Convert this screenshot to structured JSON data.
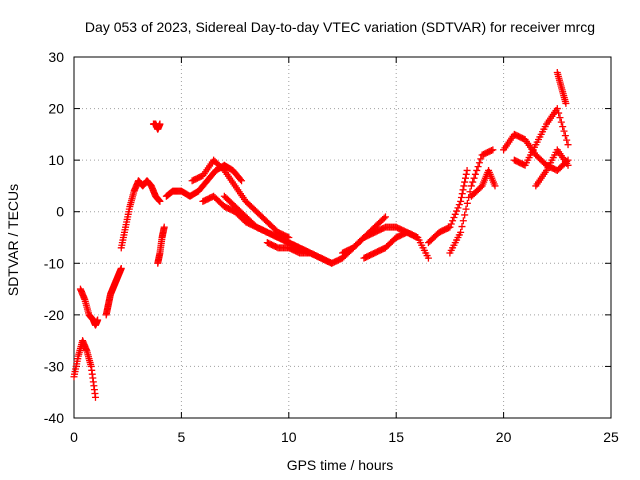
{
  "chart_data": {
    "type": "scatter",
    "title": "Day 053 of 2023, Sidereal Day-to-day VTEC variation (SDTVAR) for receiver mrcg",
    "xlabel": "GPS time / hours",
    "ylabel": "SDTVAR / TECUs",
    "xlim": [
      0,
      25
    ],
    "ylim": [
      -40,
      30
    ],
    "xticks": [
      0,
      5,
      10,
      15,
      20,
      25
    ],
    "yticks": [
      -40,
      -30,
      -20,
      -10,
      0,
      10,
      20,
      30
    ],
    "xtick_labels": [
      "0",
      "5",
      "10",
      "15",
      "20",
      "25"
    ],
    "ytick_labels": [
      "-40",
      "-30",
      "-20",
      "-10",
      "0",
      "10",
      "20",
      "30"
    ],
    "grid": true,
    "grid_style": "dotted",
    "marker": "plus",
    "color": "#ff0000",
    "series": [
      {
        "x": [
          0.0,
          0.2,
          0.4,
          0.6,
          0.8,
          1.0
        ],
        "y": [
          -32,
          -28,
          -25,
          -27,
          -30,
          -36
        ]
      },
      {
        "x": [
          0.3,
          0.5,
          0.7,
          0.9,
          1.0,
          1.1
        ],
        "y": [
          -15,
          -17,
          -20,
          -21,
          -22,
          -21
        ]
      },
      {
        "x": [
          1.5,
          1.6,
          1.7,
          1.8,
          1.9,
          2.0,
          2.1,
          2.2
        ],
        "y": [
          -20,
          -18,
          -16,
          -15,
          -14,
          -13,
          -12,
          -11
        ]
      },
      {
        "x": [
          2.2,
          2.4,
          2.6,
          2.8,
          3.0,
          3.2,
          3.4,
          3.6,
          3.8,
          4.0
        ],
        "y": [
          -7,
          -3,
          1,
          4,
          6,
          5,
          6,
          5,
          3,
          2
        ]
      },
      {
        "x": [
          3.7,
          3.8,
          3.9,
          4.0
        ],
        "y": [
          17,
          17,
          16,
          17
        ]
      },
      {
        "x": [
          3.9,
          4.0,
          4.1,
          4.2
        ],
        "y": [
          -10,
          -8,
          -5,
          -3
        ]
      },
      {
        "x": [
          4.3,
          4.6,
          5.0,
          5.4,
          5.8,
          6.2,
          6.6,
          7.0,
          7.4,
          7.8
        ],
        "y": [
          3,
          4,
          4,
          3,
          4,
          6,
          8,
          9,
          8,
          6
        ]
      },
      {
        "x": [
          5.5,
          6.0,
          6.5,
          7.0,
          7.5,
          8.0,
          8.5,
          9.0,
          9.5,
          10.0
        ],
        "y": [
          6,
          7,
          10,
          8,
          5,
          2,
          0,
          -2,
          -4,
          -5
        ]
      },
      {
        "x": [
          6.0,
          6.5,
          7.0,
          7.5,
          8.0,
          8.5,
          9.0,
          9.5,
          10.0,
          10.5,
          11.0
        ],
        "y": [
          2,
          3,
          1,
          0,
          -2,
          -3,
          -4,
          -5,
          -6,
          -7,
          -8
        ]
      },
      {
        "x": [
          7.0,
          7.5,
          8.0,
          8.5,
          9.0,
          9.5,
          10.0,
          10.5,
          11.0,
          11.5,
          12.0
        ],
        "y": [
          3,
          1,
          -1,
          -3,
          -4,
          -5,
          -6,
          -7,
          -8,
          -9,
          -10
        ]
      },
      {
        "x": [
          9.0,
          9.5,
          10.0,
          10.5,
          11.0,
          11.5,
          12.0,
          12.5,
          13.0,
          13.5,
          14.0,
          14.5
        ],
        "y": [
          -6,
          -7,
          -7,
          -8,
          -8,
          -9,
          -10,
          -9,
          -7,
          -5,
          -3,
          -1
        ]
      },
      {
        "x": [
          12.5,
          13.0,
          13.5,
          14.0,
          14.5,
          15.0,
          15.5,
          16.0
        ],
        "y": [
          -8,
          -7,
          -5,
          -4,
          -3,
          -3,
          -4,
          -5
        ]
      },
      {
        "x": [
          13.5,
          14.0,
          14.5,
          15.0,
          15.5,
          16.0,
          16.5
        ],
        "y": [
          -9,
          -8,
          -7,
          -5,
          -4,
          -5,
          -9
        ]
      },
      {
        "x": [
          16.5,
          17.0,
          17.5,
          18.0,
          18.3
        ],
        "y": [
          -6,
          -4,
          -3,
          2,
          8
        ]
      },
      {
        "x": [
          17.5,
          18.0,
          18.5,
          19.0,
          19.5
        ],
        "y": [
          -8,
          -4,
          5,
          11,
          12
        ]
      },
      {
        "x": [
          18.5,
          19.0,
          19.3,
          19.6
        ],
        "y": [
          3,
          5,
          8,
          5
        ]
      },
      {
        "x": [
          20.0,
          20.5,
          21.0,
          21.5,
          22.0,
          22.5,
          23.0
        ],
        "y": [
          12,
          15,
          14,
          11,
          9,
          8,
          10
        ]
      },
      {
        "x": [
          20.5,
          21.0,
          21.5,
          22.0,
          22.5,
          23.0
        ],
        "y": [
          10,
          9,
          13,
          17,
          20,
          13
        ]
      },
      {
        "x": [
          21.5,
          22.0,
          22.5,
          23.0
        ],
        "y": [
          5,
          8,
          12,
          9
        ]
      },
      {
        "x": [
          22.5,
          22.7,
          22.9
        ],
        "y": [
          27,
          24,
          21
        ]
      }
    ]
  }
}
